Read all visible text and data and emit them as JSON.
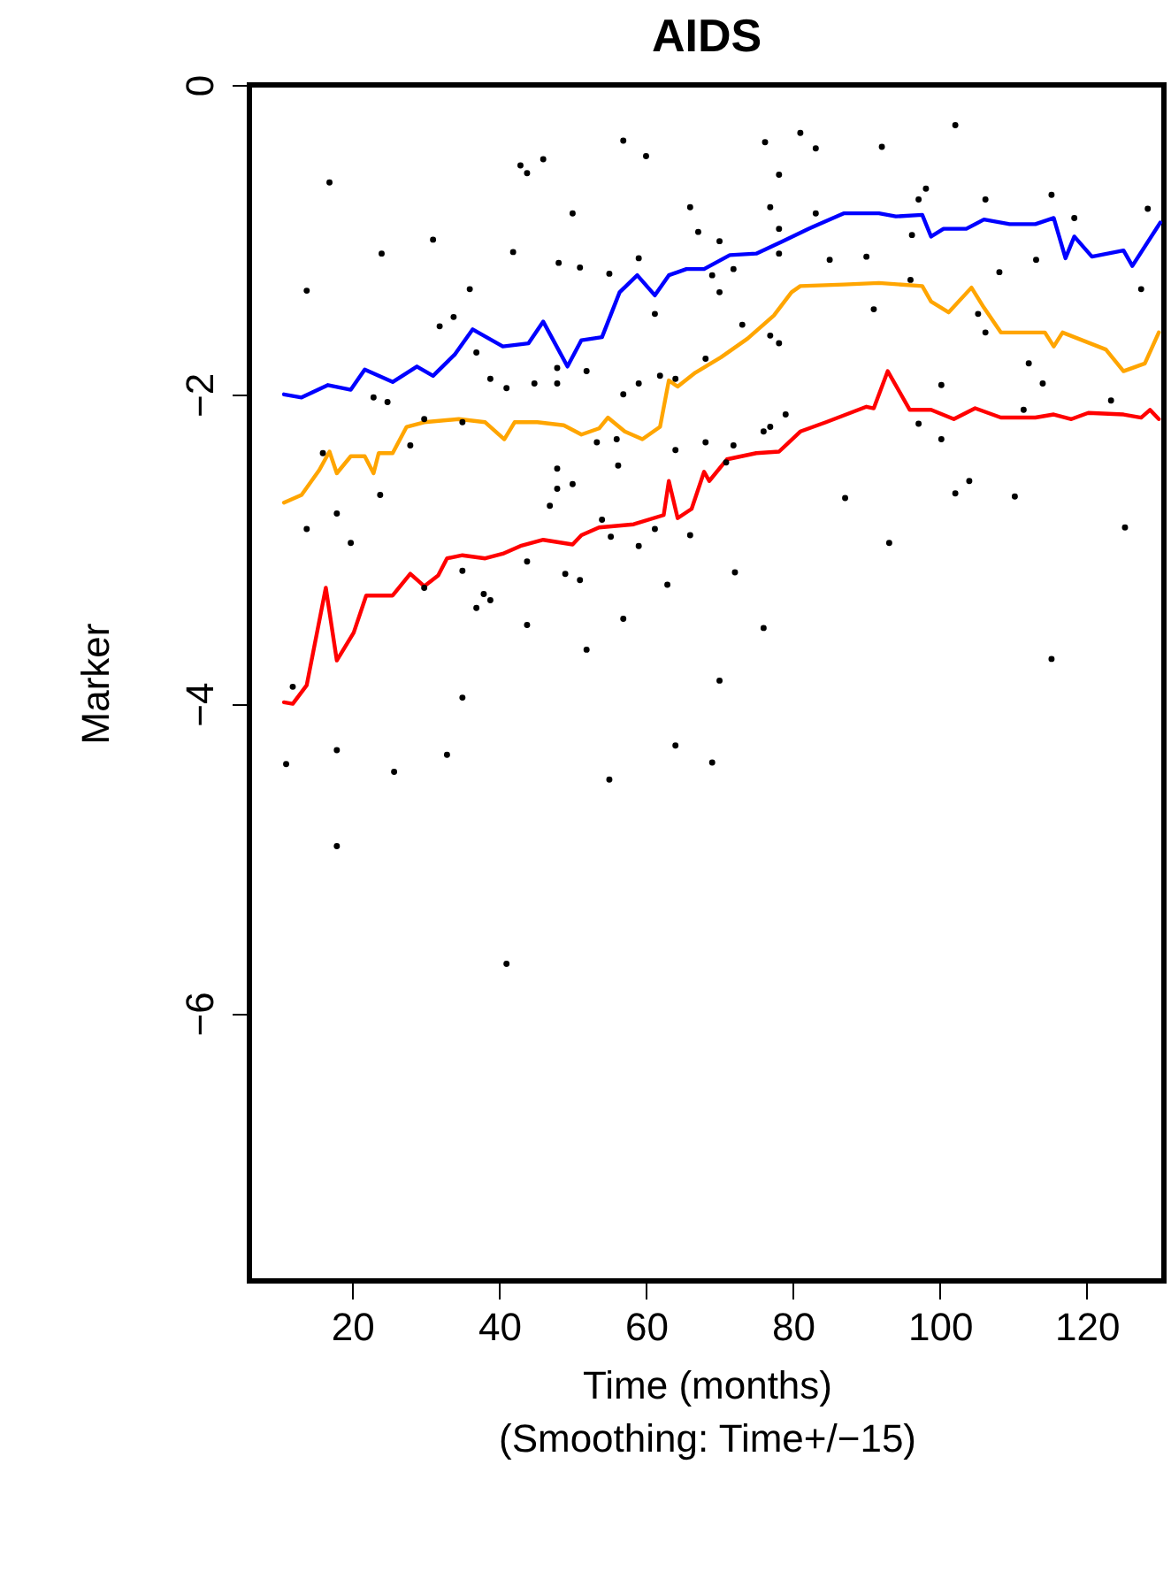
{
  "chart_data": {
    "type": "line",
    "title": "AIDS",
    "xlabel": "Time (months)\n(Smoothing: Time+/−15)",
    "ylabel": "Marker",
    "xlim": [
      6,
      130.5
    ],
    "ylim": [
      -7.73,
      0
    ],
    "xticks": [
      20,
      40,
      60,
      80,
      100,
      120
    ],
    "yticks": [
      0,
      -2,
      -4,
      -6
    ],
    "grid": false,
    "legend": false,
    "line_style": "solid",
    "series": [
      {
        "color": "#0000ff",
        "x": [
          10.7,
          13.1,
          16.7,
          19.8,
          21.7,
          25.5,
          28.8,
          31,
          34,
          36.4,
          40.5,
          44,
          46,
          49.3,
          51.2,
          54,
          56.4,
          58.8,
          61.2,
          63.1,
          65.5,
          67.9,
          71.4,
          75,
          78.6,
          82.1,
          86.9,
          91.7,
          94,
          97.6,
          98.8,
          100.5,
          103.6,
          106,
          109.5,
          113,
          115.5,
          117.1,
          118.3,
          120.7,
          125,
          126.2,
          130
        ],
        "values": [
          -2.0,
          -2.02,
          -1.94,
          -1.97,
          -1.84,
          -1.92,
          -1.82,
          -1.88,
          -1.74,
          -1.58,
          -1.69,
          -1.67,
          -1.53,
          -1.82,
          -1.65,
          -1.63,
          -1.34,
          -1.23,
          -1.36,
          -1.23,
          -1.19,
          -1.19,
          -1.1,
          -1.09,
          -1.01,
          -0.93,
          -0.83,
          -0.83,
          -0.85,
          -0.84,
          -0.98,
          -0.93,
          -0.93,
          -0.87,
          -0.9,
          -0.9,
          -0.86,
          -1.12,
          -0.98,
          -1.11,
          -1.07,
          -1.17,
          -0.89
        ]
      },
      {
        "color": "#ffa500",
        "x": [
          10.7,
          13.1,
          15.5,
          16.9,
          17.9,
          19.8,
          21.7,
          22.9,
          23.6,
          25.5,
          27.4,
          29.8,
          34.5,
          38.1,
          40.7,
          42.1,
          45.2,
          48.8,
          51.2,
          53.6,
          54.8,
          57.1,
          59.5,
          61.9,
          63.1,
          64.3,
          66.7,
          70.2,
          73.8,
          77.4,
          79.8,
          81,
          86.9,
          91.7,
          97.6,
          98.8,
          101.2,
          104.3,
          106,
          108.3,
          114.3,
          115.5,
          116.7,
          122.6,
          125,
          127.9,
          129.8
        ],
        "values": [
          -2.7,
          -2.65,
          -2.49,
          -2.37,
          -2.51,
          -2.4,
          -2.4,
          -2.51,
          -2.38,
          -2.38,
          -2.21,
          -2.18,
          -2.16,
          -2.18,
          -2.29,
          -2.18,
          -2.18,
          -2.2,
          -2.26,
          -2.22,
          -2.15,
          -2.24,
          -2.29,
          -2.21,
          -1.91,
          -1.95,
          -1.86,
          -1.76,
          -1.64,
          -1.49,
          -1.34,
          -1.3,
          -1.29,
          -1.28,
          -1.3,
          -1.4,
          -1.47,
          -1.31,
          -1.44,
          -1.6,
          -1.6,
          -1.69,
          -1.6,
          -1.71,
          -1.85,
          -1.8,
          -1.6
        ]
      },
      {
        "color": "#ff0000",
        "x": [
          10.7,
          11.9,
          13.8,
          16.4,
          17.9,
          20.2,
          21.9,
          25.5,
          27.9,
          29.8,
          31.7,
          32.9,
          35,
          38.1,
          40.5,
          42.9,
          46,
          50,
          51.2,
          53.6,
          58.3,
          62.4,
          63.1,
          64.3,
          66.2,
          67.9,
          68.6,
          71,
          75,
          78.1,
          81,
          84.5,
          90,
          91,
          92.9,
          95.9,
          98.8,
          101.9,
          104.8,
          108.3,
          111.9,
          113,
          115.5,
          117.9,
          120.2,
          125,
          127.4,
          128.6,
          129.8
        ],
        "values": [
          -3.99,
          -4.0,
          -3.88,
          -3.25,
          -3.72,
          -3.54,
          -3.3,
          -3.3,
          -3.16,
          -3.24,
          -3.17,
          -3.06,
          -3.04,
          -3.06,
          -3.03,
          -2.98,
          -2.94,
          -2.97,
          -2.91,
          -2.86,
          -2.84,
          -2.78,
          -2.56,
          -2.8,
          -2.74,
          -2.5,
          -2.56,
          -2.42,
          -2.38,
          -2.37,
          -2.24,
          -2.18,
          -2.08,
          -2.09,
          -1.85,
          -2.1,
          -2.1,
          -2.16,
          -2.09,
          -2.15,
          -2.15,
          -2.15,
          -2.13,
          -2.16,
          -2.12,
          -2.13,
          -2.15,
          -2.1,
          -2.16
        ]
      },
      {
        "type": "scatter",
        "color": "#000000",
        "marker": "circle",
        "x": [
          16.9,
          13.8,
          24.0,
          31.0,
          36.0,
          31.9,
          33.8,
          42.9,
          43.8,
          46.0,
          41.9,
          48.1,
          50.0,
          51.0,
          56.9,
          60.0,
          59.0,
          55.0,
          66.0,
          67.1,
          61.2,
          36.9,
          38.8,
          41.0,
          44.8,
          47.9,
          47.9,
          51.9,
          22.9,
          24.8,
          29.8,
          35.0,
          59.0,
          56.9,
          61.9,
          64.0,
          53.3,
          56.0,
          27.9,
          16.0,
          64.0,
          81.0,
          76.2,
          83.1,
          78.1,
          92.1,
          102.1,
          70.0,
          76.9,
          78.1,
          83.1,
          98.1,
          97.1,
          106.2,
          115.2,
          118.3,
          128.3,
          96.2,
          85.0,
          90.0,
          113.1,
          108.1,
          71.9,
          69.0,
          70.0,
          78.1,
          96.0,
          127.4,
          91.0,
          105.2,
          73.1,
          76.9,
          78.1,
          106.2,
          68.1,
          112.1,
          100.2,
          114.0,
          123.3,
          111.4,
          79.0,
          76.9,
          76.0,
          97.1,
          100.2,
          68.1,
          71.9,
          23.8,
          17.9,
          13.8,
          19.8,
          47.9,
          50.0,
          47.9,
          46.9,
          56.2,
          54.0,
          55.2,
          59.0,
          61.2,
          66.0,
          43.8,
          49.0,
          51.0,
          35.0,
          29.8,
          37.9,
          38.8,
          36.9,
          43.8,
          56.9,
          51.9,
          62.9,
          11.9,
          35.0,
          17.9,
          11.0,
          25.7,
          32.9,
          55.0,
          64.0,
          70.9,
          87.1,
          102.1,
          104.0,
          110.2,
          93.1,
          125.2,
          72.1,
          76.0,
          70.0,
          115.2,
          69.0,
          17.9,
          41.0
        ],
        "values": [
          -0.63,
          -1.33,
          -1.09,
          -1.0,
          -1.32,
          -1.56,
          -1.5,
          -0.52,
          -0.57,
          -0.48,
          -1.08,
          -1.15,
          -0.83,
          -1.18,
          -0.36,
          -0.46,
          -1.12,
          -1.22,
          -0.79,
          -0.95,
          -1.48,
          -1.73,
          -1.9,
          -1.96,
          -1.93,
          -1.83,
          -1.93,
          -1.85,
          -2.02,
          -2.05,
          -2.16,
          -2.18,
          -1.93,
          -2.0,
          -1.88,
          -1.9,
          -2.31,
          -2.29,
          -2.33,
          -2.38,
          -2.36,
          -0.31,
          -0.37,
          -0.41,
          -0.58,
          -0.4,
          -0.26,
          -1.01,
          -0.79,
          -0.93,
          -0.83,
          -0.67,
          -0.74,
          -0.74,
          -0.71,
          -0.86,
          -0.8,
          -0.97,
          -1.13,
          -1.11,
          -1.13,
          -1.21,
          -1.19,
          -1.23,
          -1.34,
          -1.09,
          -1.26,
          -1.32,
          -1.45,
          -1.48,
          -1.55,
          -1.62,
          -1.67,
          -1.6,
          -1.77,
          -1.8,
          -1.94,
          -1.93,
          -2.04,
          -2.1,
          -2.13,
          -2.21,
          -2.24,
          -2.19,
          -2.29,
          -2.31,
          -2.33,
          -2.65,
          -2.77,
          -2.87,
          -2.96,
          -2.48,
          -2.58,
          -2.61,
          -2.72,
          -2.46,
          -2.81,
          -2.92,
          -2.98,
          -2.87,
          -2.91,
          -3.08,
          -3.16,
          -3.2,
          -3.14,
          -3.25,
          -3.29,
          -3.33,
          -3.38,
          -3.49,
          -3.45,
          -3.65,
          -3.23,
          -3.89,
          -3.96,
          -4.3,
          -4.39,
          -4.44,
          -4.33,
          -4.49,
          -4.27,
          -2.44,
          -2.67,
          -2.64,
          -2.56,
          -2.66,
          -2.96,
          -2.86,
          -3.15,
          -3.51,
          -3.85,
          -3.71,
          -4.38,
          -4.92,
          -5.68
        ]
      }
    ]
  }
}
